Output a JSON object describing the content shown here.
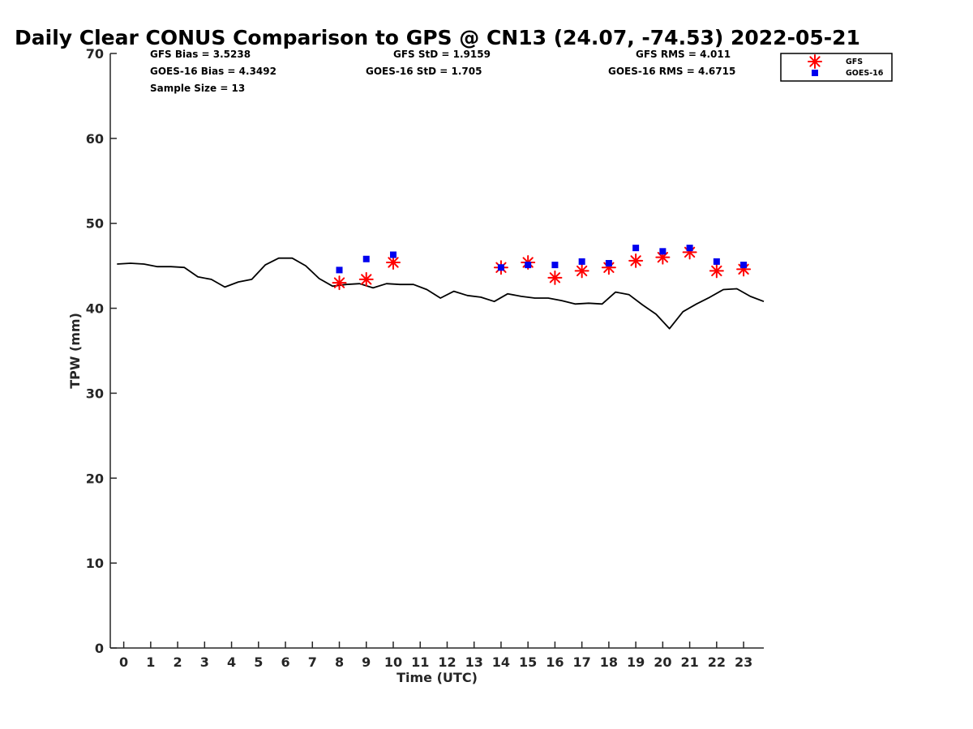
{
  "chart_data": {
    "type": "scatter",
    "title": "Daily Clear CONUS Comparison to GPS @ CN13 (24.07, -74.53) 2022-05-21",
    "xlabel": "Time (UTC)",
    "ylabel": "TPW (mm)",
    "xlim": [
      -0.5,
      23.75
    ],
    "ylim": [
      0,
      70
    ],
    "x_ticks": [
      "0",
      "1",
      "2",
      "3",
      "4",
      "5",
      "6",
      "7",
      "8",
      "9",
      "10",
      "11",
      "12",
      "13",
      "14",
      "15",
      "16",
      "17",
      "18",
      "19",
      "20",
      "21",
      "22",
      "23"
    ],
    "y_ticks": [
      "0",
      "10",
      "20",
      "30",
      "40",
      "50",
      "60",
      "70"
    ],
    "grid": false,
    "legend_position": "top-right",
    "stats": {
      "gfs_bias": "GFS Bias = 3.5238",
      "gfs_std": "GFS StD = 1.9159",
      "gfs_rms": "GFS RMS = 4.011",
      "goes_bias": "GOES-16 Bias = 4.3492",
      "goes_std": "GOES-16 StD = 1.705",
      "goes_rms": "GOES-16 RMS = 4.6715",
      "sample_size": "Sample Size = 13"
    },
    "series": [
      {
        "name": "",
        "style": "line",
        "color": "#000000",
        "x": [
          -0.25,
          0.25,
          0.75,
          1.25,
          1.75,
          2.25,
          2.75,
          3.25,
          3.75,
          4.25,
          4.75,
          5.25,
          5.75,
          6.25,
          6.75,
          7.25,
          7.75,
          8.25,
          8.75,
          9.25,
          9.75,
          10.25,
          10.75,
          11.25,
          11.75,
          12.25,
          12.75,
          13.25,
          13.75,
          14.25,
          14.75,
          15.25,
          15.75,
          16.25,
          16.75,
          17.25,
          17.75,
          18.25,
          18.75,
          19.25,
          19.75,
          20.25,
          20.75,
          21.25,
          21.75,
          22.25,
          22.75,
          23.25,
          23.75
        ],
        "y": [
          45.2,
          45.3,
          45.2,
          44.9,
          44.9,
          44.8,
          43.7,
          43.4,
          42.5,
          43.1,
          43.4,
          45.1,
          45.9,
          45.9,
          45.0,
          43.5,
          42.6,
          42.8,
          42.9,
          42.4,
          42.9,
          42.8,
          42.8,
          42.2,
          41.2,
          42.0,
          41.5,
          41.3,
          40.8,
          41.7,
          41.4,
          41.2,
          41.2,
          40.9,
          40.5,
          40.6,
          40.5,
          41.9,
          41.6,
          40.4,
          39.3,
          37.6,
          39.6,
          40.5,
          41.3,
          42.2,
          42.3,
          41.4,
          40.8
        ]
      },
      {
        "name": "GFS",
        "style": "asterisk",
        "color": "#ff0000",
        "x": [
          8,
          9,
          10,
          14,
          15,
          16,
          17,
          18,
          19,
          20,
          21,
          22,
          23
        ],
        "y": [
          43.0,
          43.4,
          45.4,
          44.8,
          45.4,
          43.6,
          44.4,
          44.8,
          45.6,
          46.0,
          46.6,
          44.4,
          44.6
        ]
      },
      {
        "name": "GOES-16",
        "style": "square",
        "color": "#0000ee",
        "x": [
          8,
          9,
          10,
          14,
          15,
          16,
          17,
          18,
          19,
          20,
          21,
          22,
          23
        ],
        "y": [
          44.5,
          45.8,
          46.3,
          44.8,
          45.1,
          45.1,
          45.5,
          45.3,
          47.1,
          46.7,
          47.1,
          45.5,
          45.1
        ]
      }
    ]
  }
}
